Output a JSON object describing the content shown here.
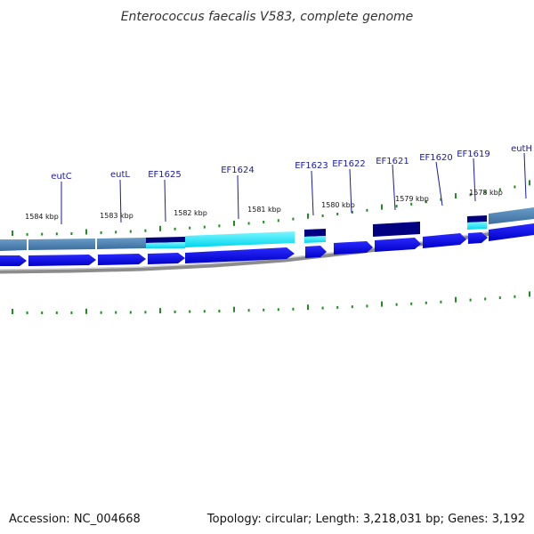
{
  "title": "Enterococcus faecalis V583, complete genome",
  "footer": {
    "accession": "Accession: NC_004668",
    "summary": "Topology: circular; Length: 3,218,031 bp; Genes: 3,192"
  },
  "colors": {
    "gene_label": "#1a1aa6",
    "forward_gene": "#0000ee",
    "feature_blue": "#4a86b8",
    "feature_cyan": "#00e5ff",
    "feature_navy": "#000080",
    "tick_green": "#228b22",
    "backbone": "#8c8c8c"
  },
  "gene_labels": [
    "eutC",
    "eutL",
    "EF1625",
    "EF1624",
    "EF1623",
    "EF1622",
    "EF1621",
    "EF1620",
    "EF1619",
    "eutH"
  ],
  "kbp_labels": [
    "1584 kbp",
    "1583 kbp",
    "1582 kbp",
    "1581 kbp",
    "1580 kbp",
    "1579 kbp",
    "1578 kbp"
  ]
}
